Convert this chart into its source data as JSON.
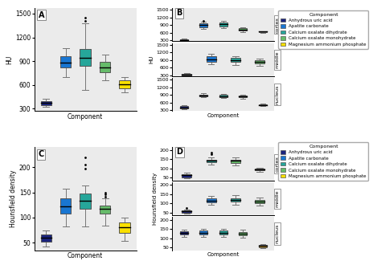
{
  "panel_A": {
    "ylabel": "HU",
    "xlabel": "Component",
    "ylim": [
      270,
      1570
    ],
    "yticks": [
      300,
      600,
      900,
      1200,
      1500
    ],
    "boxes": [
      {
        "color": "#1a237e",
        "q1": 340,
        "median": 370,
        "q3": 400,
        "whisker_low": 320,
        "whisker_high": 430,
        "outliers": [],
        "x": 1
      },
      {
        "color": "#1976d2",
        "q1": 820,
        "median": 880,
        "q3": 960,
        "whisker_low": 700,
        "whisker_high": 1060,
        "outliers": [],
        "x": 2
      },
      {
        "color": "#26a69a",
        "q1": 840,
        "median": 940,
        "q3": 1050,
        "whisker_low": 540,
        "whisker_high": 1380,
        "outliers": [
          1410,
          1450
        ],
        "x": 3
      },
      {
        "color": "#66bb6a",
        "q1": 760,
        "median": 820,
        "q3": 890,
        "whisker_low": 660,
        "whisker_high": 980,
        "outliers": [],
        "x": 4
      },
      {
        "color": "#f9e000",
        "q1": 560,
        "median": 610,
        "q3": 660,
        "whisker_low": 510,
        "whisker_high": 700,
        "outliers": [],
        "x": 5
      }
    ]
  },
  "panel_B": {
    "ylabel": "HU",
    "xlabel": "Component",
    "sections": [
      "cortex",
      "middle",
      "nucleus"
    ],
    "ylim": [
      270,
      1570
    ],
    "yticks": [
      300,
      600,
      900,
      1200,
      1500
    ],
    "cortex_boxes": [
      {
        "color": "#1a237e",
        "q1": 300,
        "median": 330,
        "q3": 360,
        "whisker_low": 270,
        "whisker_high": 390,
        "outliers": [],
        "x": 1
      },
      {
        "color": "#1976d2",
        "q1": 820,
        "median": 900,
        "q3": 980,
        "whisker_low": 750,
        "whisker_high": 1040,
        "outliers": [
          1070
        ],
        "x": 2
      },
      {
        "color": "#26a69a",
        "q1": 860,
        "median": 940,
        "q3": 1010,
        "whisker_low": 800,
        "whisker_high": 1060,
        "outliers": [],
        "x": 3
      },
      {
        "color": "#66bb6a",
        "q1": 680,
        "median": 730,
        "q3": 780,
        "whisker_low": 630,
        "whisker_high": 820,
        "outliers": [],
        "x": 4
      },
      {
        "color": "#b8860b",
        "q1": 620,
        "median": 645,
        "q3": 660,
        "whisker_low": 610,
        "whisker_high": 670,
        "outliers": [],
        "x": 5
      }
    ],
    "middle_boxes": [
      {
        "color": "#1a237e",
        "q1": 290,
        "median": 320,
        "q3": 350,
        "whisker_low": 270,
        "whisker_high": 400,
        "outliers": [],
        "x": 1
      },
      {
        "color": "#1976d2",
        "q1": 840,
        "median": 940,
        "q3": 1040,
        "whisker_low": 750,
        "whisker_high": 1160,
        "outliers": [],
        "x": 2
      },
      {
        "color": "#26a69a",
        "q1": 820,
        "median": 910,
        "q3": 980,
        "whisker_low": 720,
        "whisker_high": 1060,
        "outliers": [],
        "x": 3
      },
      {
        "color": "#66bb6a",
        "q1": 760,
        "median": 820,
        "q3": 880,
        "whisker_low": 680,
        "whisker_high": 950,
        "outliers": [],
        "x": 4
      }
    ],
    "nucleus_boxes": [
      {
        "color": "#1a237e",
        "q1": 370,
        "median": 420,
        "q3": 470,
        "whisker_low": 330,
        "whisker_high": 510,
        "outliers": [],
        "x": 1
      },
      {
        "color": "#1976d2",
        "q1": 840,
        "median": 880,
        "q3": 920,
        "whisker_low": 800,
        "whisker_high": 960,
        "outliers": [],
        "x": 2
      },
      {
        "color": "#26a69a",
        "q1": 820,
        "median": 860,
        "q3": 900,
        "whisker_low": 780,
        "whisker_high": 940,
        "outliers": [],
        "x": 3
      },
      {
        "color": "#66bb6a",
        "q1": 800,
        "median": 840,
        "q3": 880,
        "whisker_low": 760,
        "whisker_high": 920,
        "outliers": [],
        "x": 4
      },
      {
        "color": "#b8860b",
        "q1": 490,
        "median": 510,
        "q3": 535,
        "whisker_low": 460,
        "whisker_high": 555,
        "outliers": [],
        "x": 5
      }
    ]
  },
  "panel_C": {
    "ylabel": "Hounsfield density",
    "xlabel": "Component",
    "ylim": [
      35,
      240
    ],
    "yticks": [
      50,
      100,
      150,
      200
    ],
    "boxes": [
      {
        "color": "#1a237e",
        "q1": 52,
        "median": 60,
        "q3": 67,
        "whisker_low": 43,
        "whisker_high": 74,
        "outliers": [],
        "x": 1
      },
      {
        "color": "#1976d2",
        "q1": 108,
        "median": 122,
        "q3": 138,
        "whisker_low": 83,
        "whisker_high": 158,
        "outliers": [],
        "x": 2
      },
      {
        "color": "#26a69a",
        "q1": 118,
        "median": 133,
        "q3": 148,
        "whisker_low": 82,
        "whisker_high": 163,
        "outliers": [
          198,
          205,
          220
        ],
        "x": 3
      },
      {
        "color": "#66bb6a",
        "q1": 108,
        "median": 117,
        "q3": 124,
        "whisker_low": 84,
        "whisker_high": 138,
        "outliers": [
          142,
          146,
          150
        ],
        "x": 4
      },
      {
        "color": "#f9e000",
        "q1": 69,
        "median": 80,
        "q3": 90,
        "whisker_low": 53,
        "whisker_high": 100,
        "outliers": [],
        "x": 5
      }
    ]
  },
  "panel_D": {
    "ylabel": "Hounsfield density",
    "xlabel": "Component",
    "sections": [
      "cortex",
      "middle",
      "nucleus"
    ],
    "ylim": [
      35,
      215
    ],
    "yticks": [
      50,
      100,
      150,
      200
    ],
    "cortex_boxes": [
      {
        "color": "#1a237e",
        "q1": 52,
        "median": 62,
        "q3": 68,
        "whisker_low": 46,
        "whisker_high": 75,
        "outliers": [],
        "x": 1
      },
      {
        "color": "#26a69a",
        "q1": 133,
        "median": 140,
        "q3": 148,
        "whisker_low": 120,
        "whisker_high": 158,
        "outliers": [
          175,
          185
        ],
        "x": 2
      },
      {
        "color": "#66bb6a",
        "q1": 130,
        "median": 140,
        "q3": 148,
        "whisker_low": 118,
        "whisker_high": 158,
        "outliers": [],
        "x": 3
      },
      {
        "color": "#b8860b",
        "q1": 88,
        "median": 95,
        "q3": 100,
        "whisker_low": 82,
        "whisker_high": 105,
        "outliers": [],
        "x": 4
      }
    ],
    "middle_boxes": [
      {
        "color": "#1a237e",
        "q1": 48,
        "median": 55,
        "q3": 62,
        "whisker_low": 42,
        "whisker_high": 68,
        "outliers": [
          75
        ],
        "x": 1
      },
      {
        "color": "#1976d2",
        "q1": 105,
        "median": 115,
        "q3": 125,
        "whisker_low": 90,
        "whisker_high": 138,
        "outliers": [],
        "x": 2
      },
      {
        "color": "#26a69a",
        "q1": 108,
        "median": 118,
        "q3": 128,
        "whisker_low": 93,
        "whisker_high": 142,
        "outliers": [],
        "x": 3
      },
      {
        "color": "#66bb6a",
        "q1": 100,
        "median": 110,
        "q3": 118,
        "whisker_low": 86,
        "whisker_high": 130,
        "outliers": [],
        "x": 4
      }
    ],
    "nucleus_boxes": [
      {
        "color": "#1a237e",
        "q1": 118,
        "median": 128,
        "q3": 138,
        "whisker_low": 105,
        "whisker_high": 148,
        "outliers": [],
        "x": 1
      },
      {
        "color": "#1976d2",
        "q1": 118,
        "median": 128,
        "q3": 140,
        "whisker_low": 105,
        "whisker_high": 150,
        "outliers": [],
        "x": 2
      },
      {
        "color": "#26a69a",
        "q1": 120,
        "median": 130,
        "q3": 140,
        "whisker_low": 107,
        "whisker_high": 150,
        "outliers": [],
        "x": 3
      },
      {
        "color": "#66bb6a",
        "q1": 115,
        "median": 124,
        "q3": 135,
        "whisker_low": 102,
        "whisker_high": 144,
        "outliers": [],
        "x": 4
      },
      {
        "color": "#b8860b",
        "q1": 52,
        "median": 57,
        "q3": 62,
        "whisker_low": 46,
        "whisker_high": 67,
        "outliers": [],
        "x": 5
      }
    ]
  },
  "legend_B": {
    "labels": [
      "Anhydrous uric acid",
      "Apatite carbonate",
      "Calcium oxalate dihydrate",
      "Calcium oxalate monohydrate",
      "Magnesium ammonium phosphate"
    ],
    "colors": [
      "#1a237e",
      "#1976d2",
      "#26a69a",
      "#66bb6a",
      "#f9e000"
    ]
  },
  "legend_D": {
    "labels": [
      "Anhydrous uric acid",
      "Apatite carbonate",
      "Calcium oxalate dihydrate",
      "Calcium oxalate monohydrate",
      "Magnesium ammonium phosphate"
    ],
    "colors": [
      "#1a237e",
      "#1976d2",
      "#26a69a",
      "#66bb6a",
      "#f9e000"
    ]
  },
  "bg_color": "#ebebeb"
}
